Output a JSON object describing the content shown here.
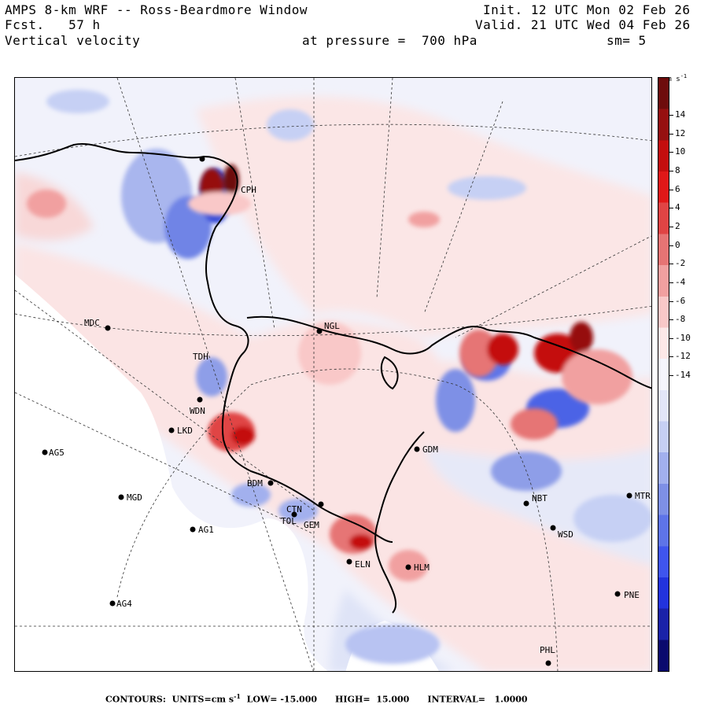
{
  "header": {
    "title": "AMPS 8-km WRF -- Ross-Beardmore Window",
    "forecast": "Fcst.   57 h",
    "field": "Vertical velocity",
    "init": "Init. 12 UTC Mon 02 Feb 26",
    "valid": "Valid. 21 UTC Wed 04 Feb 26",
    "pressure": "at pressure =  700 hPa",
    "smoothing": "sm= 5"
  },
  "colorbar": {
    "units": "cm s",
    "units_exp": "-1",
    "labels": [
      "14",
      "12",
      "10",
      "8",
      "6",
      "4",
      "2",
      "0",
      "-2",
      "-4",
      "-6",
      "-8",
      "-10",
      "-12",
      "-14"
    ],
    "colors": [
      "#0a0a6e",
      "#1a22a8",
      "#2233dd",
      "#3f55ee",
      "#5e74e8",
      "#7e90e6",
      "#a2b0ee",
      "#c6d0f4",
      "#e2e6f8",
      "#f5f5fd",
      "#fde8e8",
      "#f9c8c8",
      "#f1a0a0",
      "#e67474",
      "#e04444",
      "#e01818",
      "#c40e0e",
      "#961010",
      "#6e0c0c"
    ]
  },
  "stations": [
    {
      "id": "CPH",
      "name": "CPH"
    },
    {
      "id": "MDC",
      "name": "MDC"
    },
    {
      "id": "NGL",
      "name": "NGL"
    },
    {
      "id": "TDH",
      "name": "TDH"
    },
    {
      "id": "WDN",
      "name": "WDN"
    },
    {
      "id": "LKD",
      "name": "LKD"
    },
    {
      "id": "AG5",
      "name": "AG5"
    },
    {
      "id": "BDM",
      "name": "BDM"
    },
    {
      "id": "MGD",
      "name": "MGD"
    },
    {
      "id": "GDM",
      "name": "GDM"
    },
    {
      "id": "NBT",
      "name": "NBT"
    },
    {
      "id": "MTR",
      "name": "MTR"
    },
    {
      "id": "AG1",
      "name": "AG1"
    },
    {
      "id": "CTN",
      "name": "CTN"
    },
    {
      "id": "GEM",
      "name": "GEM"
    },
    {
      "id": "WSD",
      "name": "WSD"
    },
    {
      "id": "HLM",
      "name": "HLM"
    },
    {
      "id": "ELN",
      "name": "ELN"
    },
    {
      "id": "PNE",
      "name": "PNE"
    },
    {
      "id": "AG4",
      "name": "AG4"
    },
    {
      "id": "PHL",
      "name": "PHL"
    },
    {
      "id": "TOL",
      "name": "TOL"
    }
  ],
  "footer": {
    "contours_label": "CONTOURS:",
    "units_label": "UNITS=cm s",
    "units_exp": "-1",
    "low": "LOW= -15.000",
    "high": "HIGH=  15.000",
    "interval": "INTERVAL=   1.0000"
  }
}
